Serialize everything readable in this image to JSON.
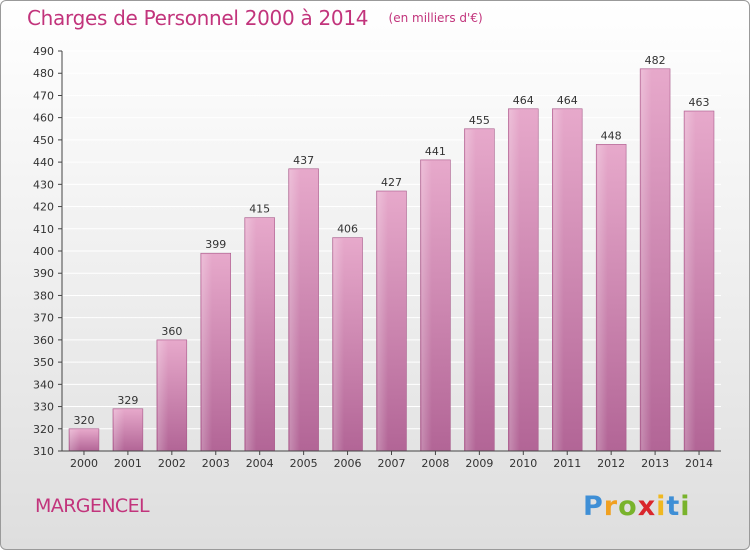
{
  "chart_data": {
    "type": "bar",
    "title": "Charges de Personnel 2000 à 2014",
    "subtitle": "(en milliers d'€)",
    "categories": [
      "2000",
      "2001",
      "2002",
      "2003",
      "2004",
      "2005",
      "2006",
      "2007",
      "2008",
      "2009",
      "2010",
      "2011",
      "2012",
      "2013",
      "2014"
    ],
    "values": [
      320,
      329,
      360,
      399,
      415,
      437,
      406,
      427,
      441,
      455,
      464,
      464,
      448,
      482,
      463
    ],
    "ylim": [
      310,
      490
    ],
    "yticks": [
      310,
      320,
      330,
      340,
      350,
      360,
      370,
      380,
      390,
      400,
      410,
      420,
      430,
      440,
      450,
      460,
      470,
      480,
      490
    ],
    "xlabel": "",
    "ylabel": "",
    "grid": true,
    "bar_color": "#c24f8f"
  },
  "commune": "MARGENCEL",
  "logo": {
    "letters": [
      "P",
      "r",
      "o",
      "x",
      "i",
      "t",
      "i"
    ],
    "icon": "proxiti-logo"
  },
  "colors": {
    "accent": "#c2347c",
    "grid": "#ffffff",
    "axis": "#444444"
  }
}
